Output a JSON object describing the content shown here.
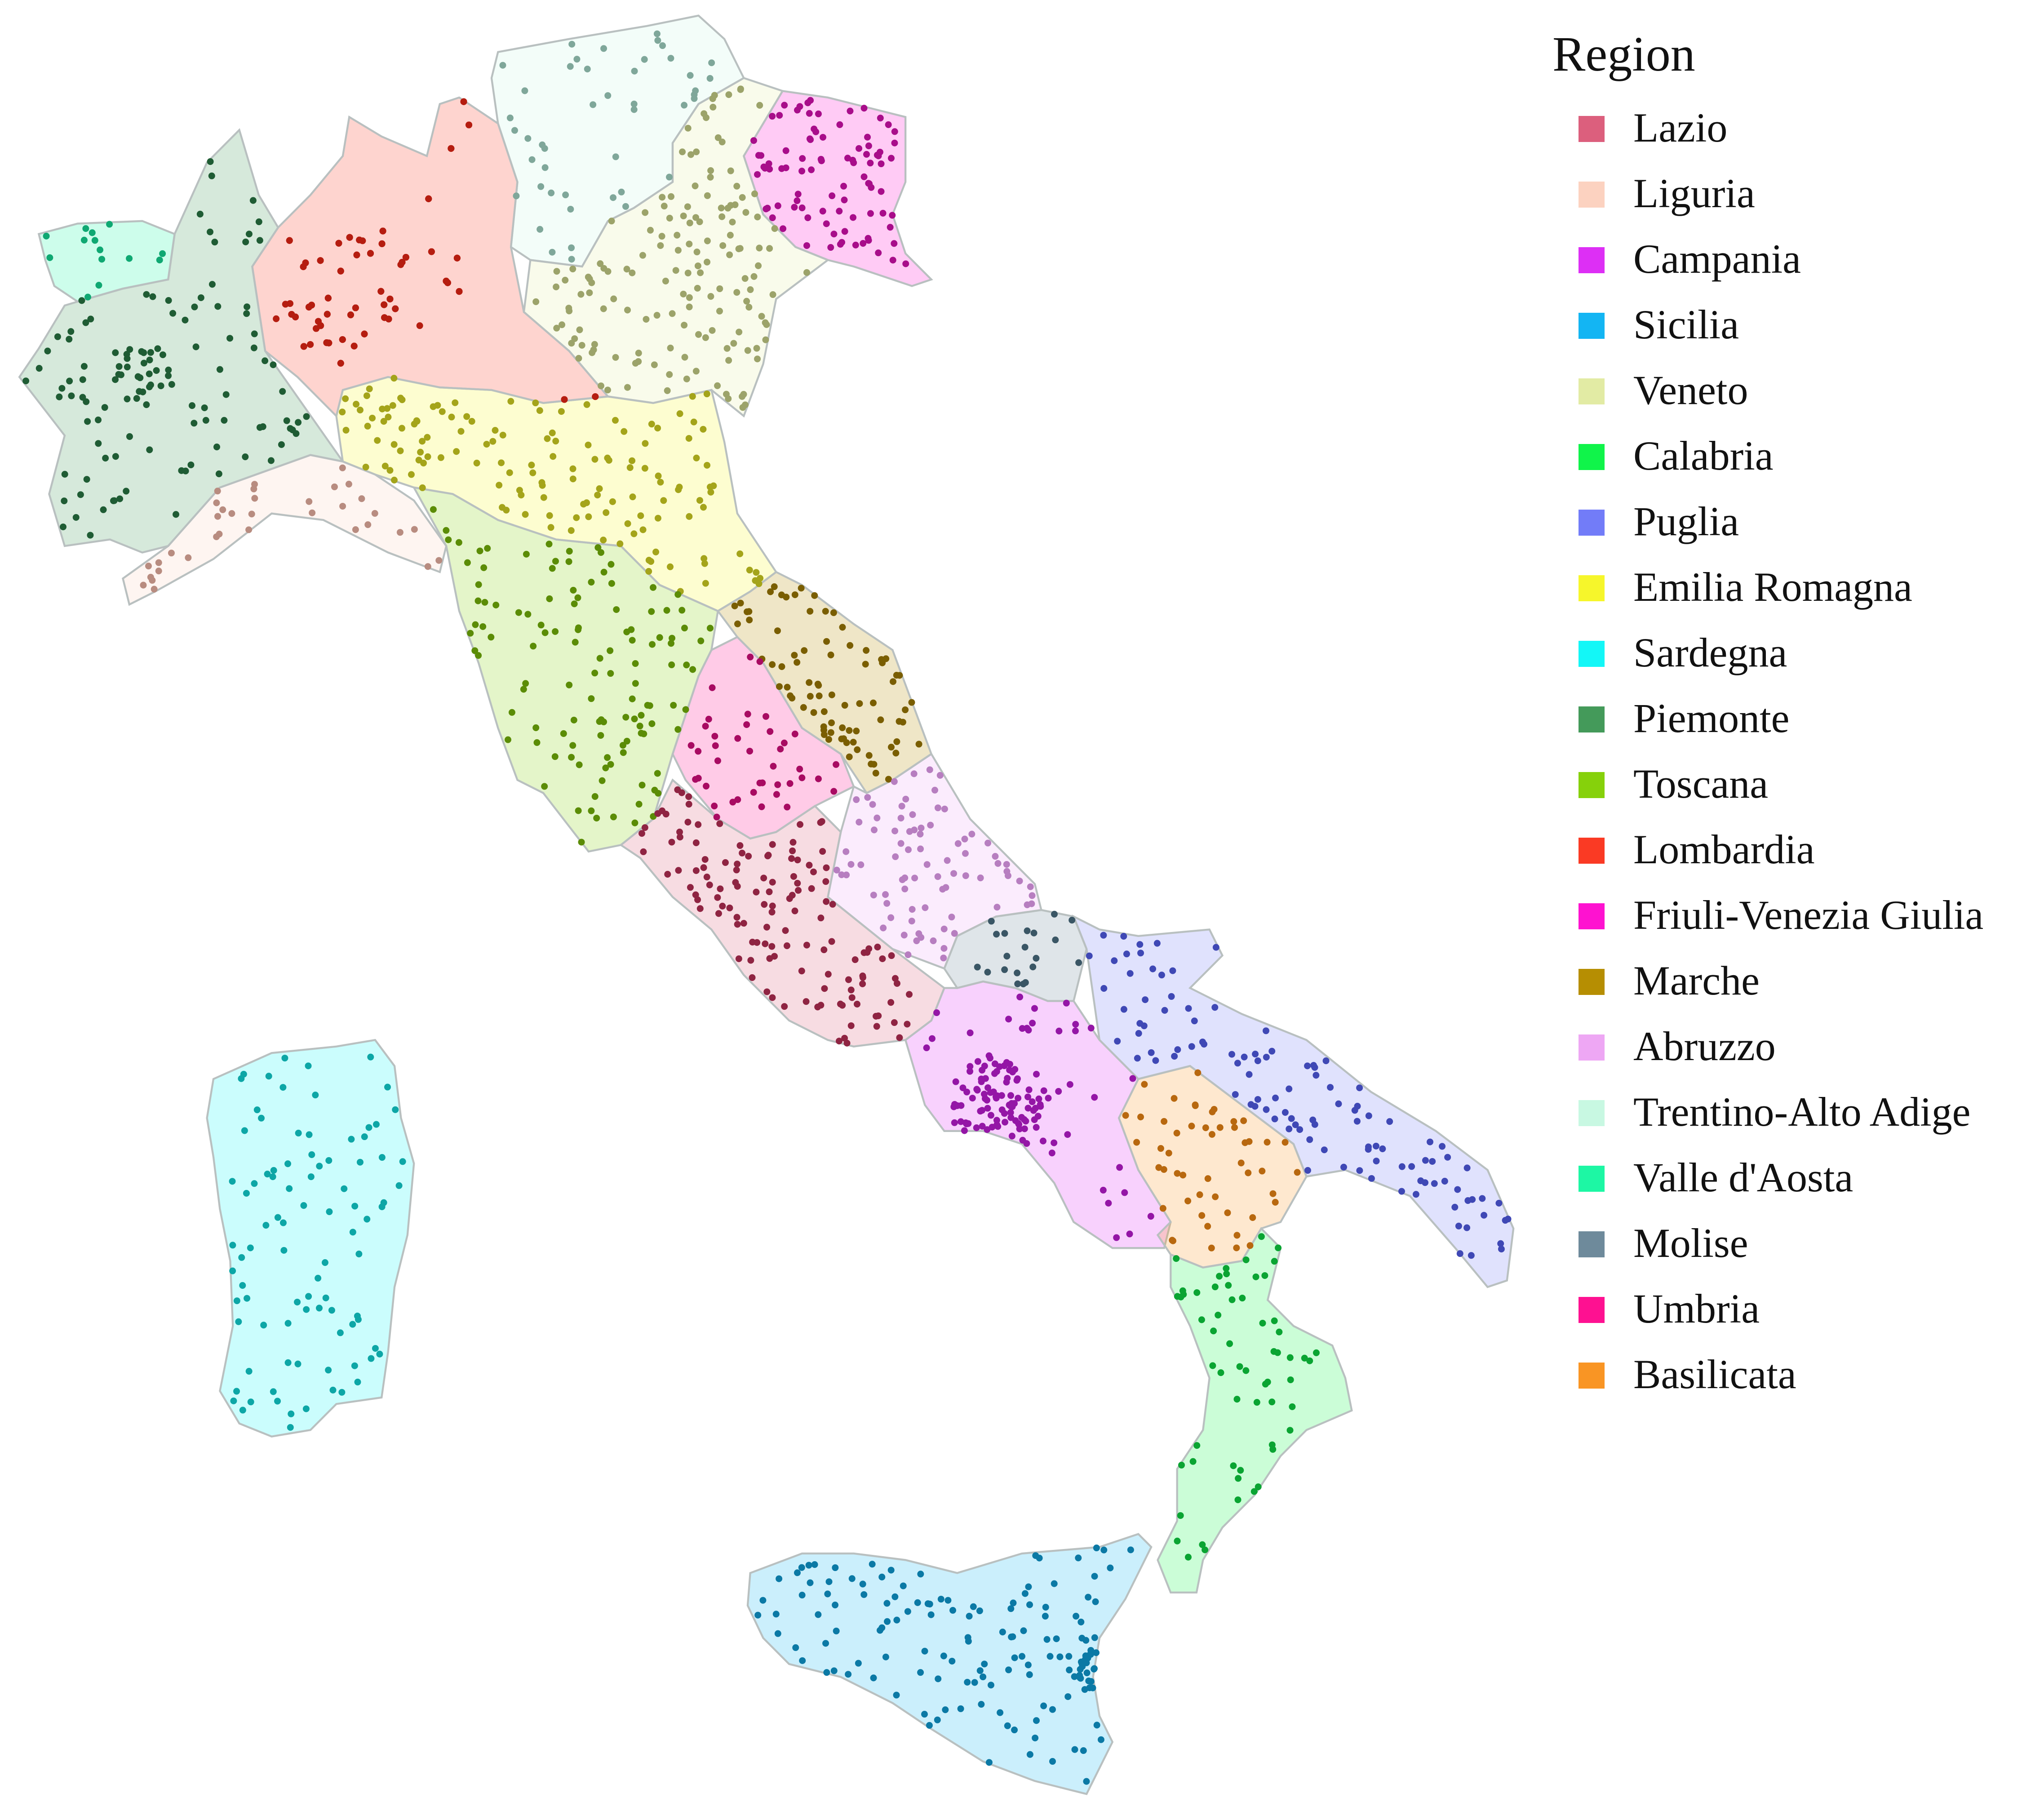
{
  "legend": {
    "title": "Region",
    "items": [
      {
        "key": "lazio",
        "label": "Lazio",
        "color": "#dc5f7d"
      },
      {
        "key": "liguria",
        "label": "Liguria",
        "color": "#fcd2c0"
      },
      {
        "key": "campania",
        "label": "Campania",
        "color": "#dd2ff5"
      },
      {
        "key": "sicilia",
        "label": "Sicilia",
        "color": "#13b5f3"
      },
      {
        "key": "veneto",
        "label": "Veneto",
        "color": "#e2eba4"
      },
      {
        "key": "calabria",
        "label": "Calabria",
        "color": "#10f44a"
      },
      {
        "key": "puglia",
        "label": "Puglia",
        "color": "#727cf8"
      },
      {
        "key": "emilia",
        "label": "Emilia Romagna",
        "color": "#f6f62b"
      },
      {
        "key": "sardegna",
        "label": "Sardegna",
        "color": "#13f7f7"
      },
      {
        "key": "piemonte",
        "label": "Piemonte",
        "color": "#449a5a"
      },
      {
        "key": "toscana",
        "label": "Toscana",
        "color": "#86d10b"
      },
      {
        "key": "lombardia",
        "label": "Lombardia",
        "color": "#fa3a24"
      },
      {
        "key": "friuli",
        "label": "Friuli-Venezia Giulia",
        "color": "#fe12d0"
      },
      {
        "key": "marche",
        "label": "Marche",
        "color": "#b68e02"
      },
      {
        "key": "abruzzo",
        "label": "Abruzzo",
        "color": "#eea7f4"
      },
      {
        "key": "trentino",
        "label": "Trentino-Alto Adige",
        "color": "#c8f8e2"
      },
      {
        "key": "valle",
        "label": "Valle d'Aosta",
        "color": "#1df7a4"
      },
      {
        "key": "molise",
        "label": "Molise",
        "color": "#6e8a9b"
      },
      {
        "key": "umbria",
        "label": "Umbria",
        "color": "#fe1191"
      },
      {
        "key": "basilicata",
        "label": "Basilicata",
        "color": "#f99524"
      }
    ]
  },
  "map": {
    "fill_opacity": 0.22,
    "border_color": "#b9c0c0",
    "region_point_colors": {
      "lazio": "#8f2442",
      "liguria": "#b88c80",
      "campania": "#9416a6",
      "sicilia": "#0b79a5",
      "veneto": "#9ca36a",
      "calabria": "#0aa432",
      "puglia": "#3f48b5",
      "emilia": "#a4a41a",
      "sardegna": "#0da6a6",
      "piemonte": "#1f5c34",
      "toscana": "#5b8c06",
      "lombardia": "#b51d10",
      "friuli": "#a80d8a",
      "marche": "#7a5e01",
      "abruzzo": "#b77ec0",
      "trentino": "#7fa79a",
      "valle": "#0fa872",
      "molise": "#3a5665",
      "umbria": "#a80b62",
      "basilicata": "#b8680f"
    }
  }
}
